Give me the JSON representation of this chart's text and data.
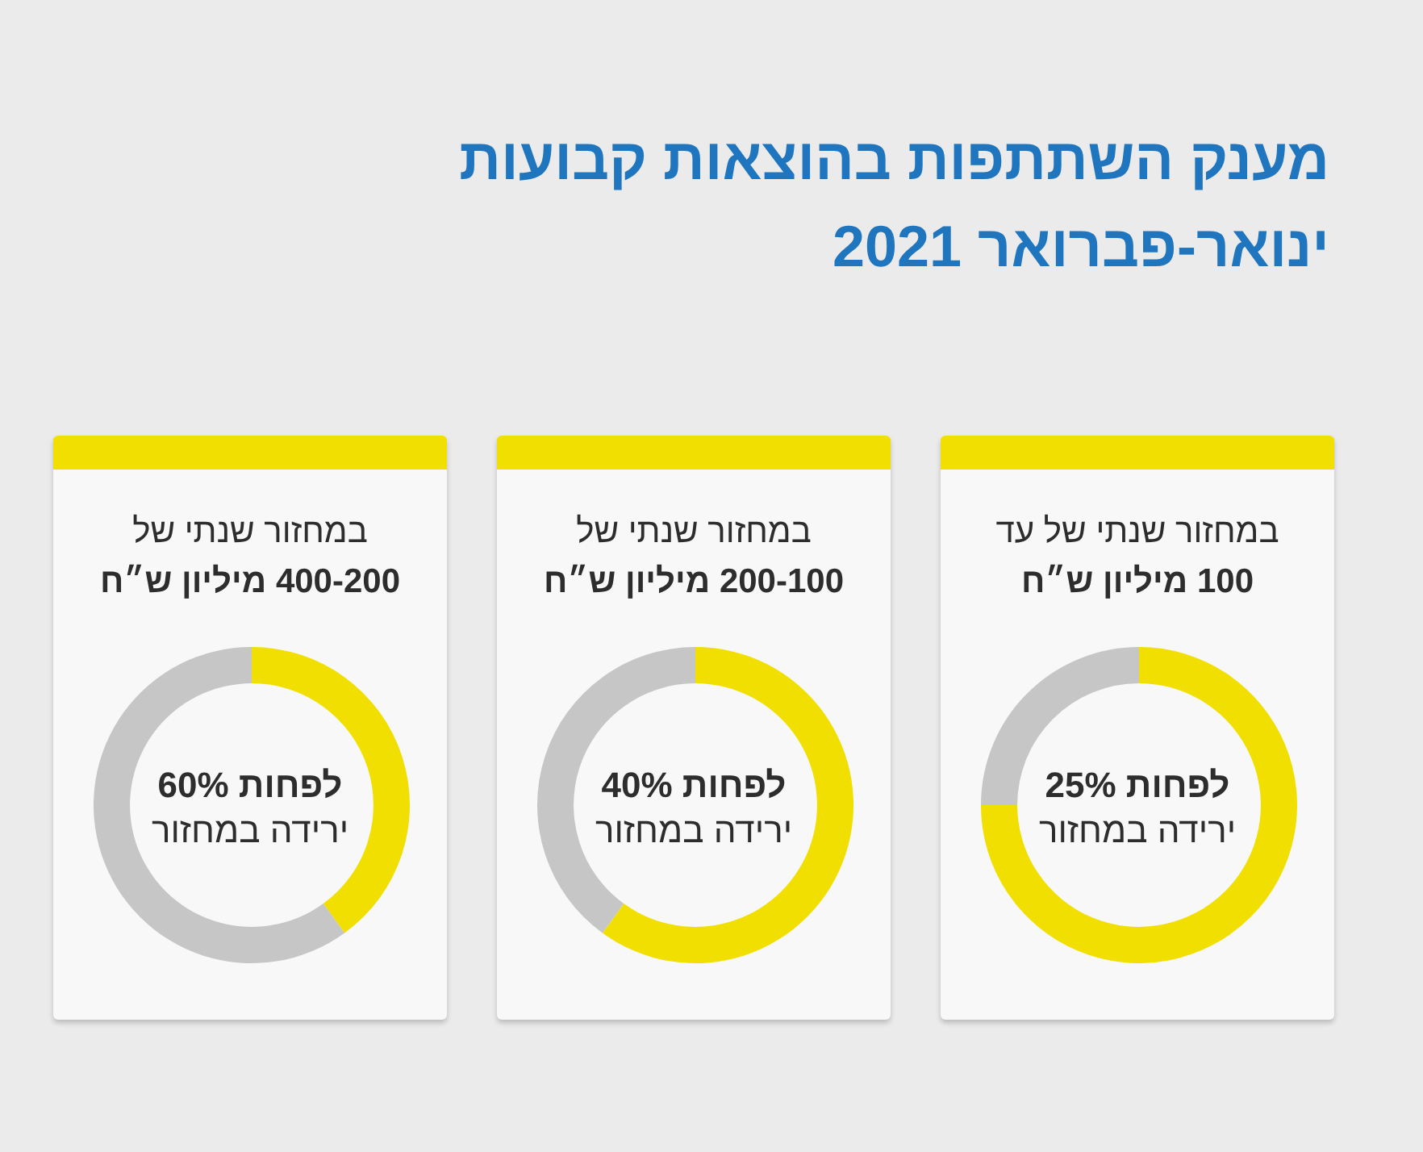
{
  "chart_data": [
    {
      "type": "other",
      "title": "מענק השתתפות בהוצאות קבועות",
      "subtitle": "ינואר-פברואר 2021"
    },
    {
      "type": "donut",
      "title": "במחזור שנתי של עד",
      "subtitle": "100 מיליון ש״ח",
      "categories": [
        null,
        null
      ],
      "values": [
        75,
        25
      ],
      "colors": [
        "#f0df00",
        "#c6c6c6"
      ],
      "annotations": [
        "לפחות 25%",
        "ירידה במחזור"
      ]
    },
    {
      "type": "donut",
      "title": "במחזור שנתי של",
      "subtitle": "200-100 מיליון ש״ח",
      "categories": [
        null,
        null
      ],
      "values": [
        60,
        40
      ],
      "colors": [
        "#f0df00",
        "#c6c6c6"
      ],
      "annotations": [
        "לפחות 40%",
        "ירידה במחזור"
      ]
    },
    {
      "type": "donut",
      "title": "במחזור שנתי של",
      "subtitle": "400-200 מיליון ש״ח",
      "categories": [
        null,
        null
      ],
      "values": [
        40,
        60
      ],
      "colors": [
        "#f0df00",
        "#c6c6c6"
      ],
      "annotations": [
        "לפחות 60%",
        "ירידה במחזור"
      ]
    }
  ]
}
